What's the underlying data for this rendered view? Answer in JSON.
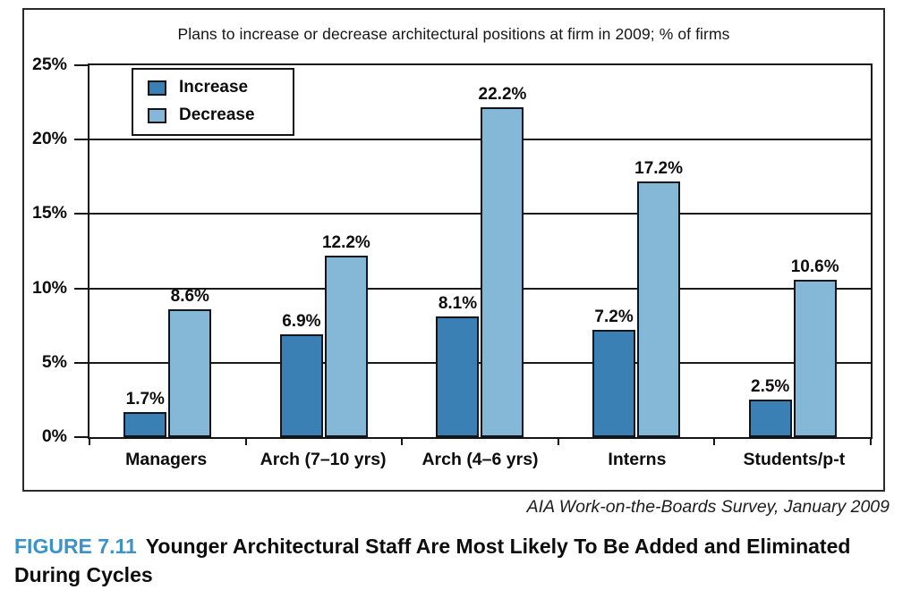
{
  "chart_data": {
    "type": "bar",
    "title": "Plans to increase or decrease architectural positions at firm in 2009; % of firms",
    "categories": [
      "Managers",
      "Arch (7–10 yrs)",
      "Arch (4–6 yrs)",
      "Interns",
      "Students/p-t"
    ],
    "series": [
      {
        "name": "Increase",
        "color": "#3a80b5",
        "values": [
          1.7,
          6.9,
          8.1,
          7.2,
          2.5
        ]
      },
      {
        "name": "Decrease",
        "color": "#85b7d7",
        "values": [
          8.6,
          12.2,
          22.2,
          17.2,
          10.6
        ]
      }
    ],
    "ylim": [
      0,
      25
    ],
    "yticks": [
      "25%",
      "20%",
      "15%",
      "10%",
      "5%",
      "0%"
    ],
    "grid": true,
    "legend_position": "top-left"
  },
  "source": "AIA Work-on-the-Boards Survey, January 2009",
  "caption": {
    "label": "FIGURE 7.11",
    "text": "Younger Architectural Staff Are Most Likely To Be Added and Eliminated During Cycles"
  },
  "colors": {
    "increase": "#3a80b5",
    "decrease": "#85b7d7",
    "caption_label": "#3b93c7",
    "bar_border": "#10161c"
  }
}
